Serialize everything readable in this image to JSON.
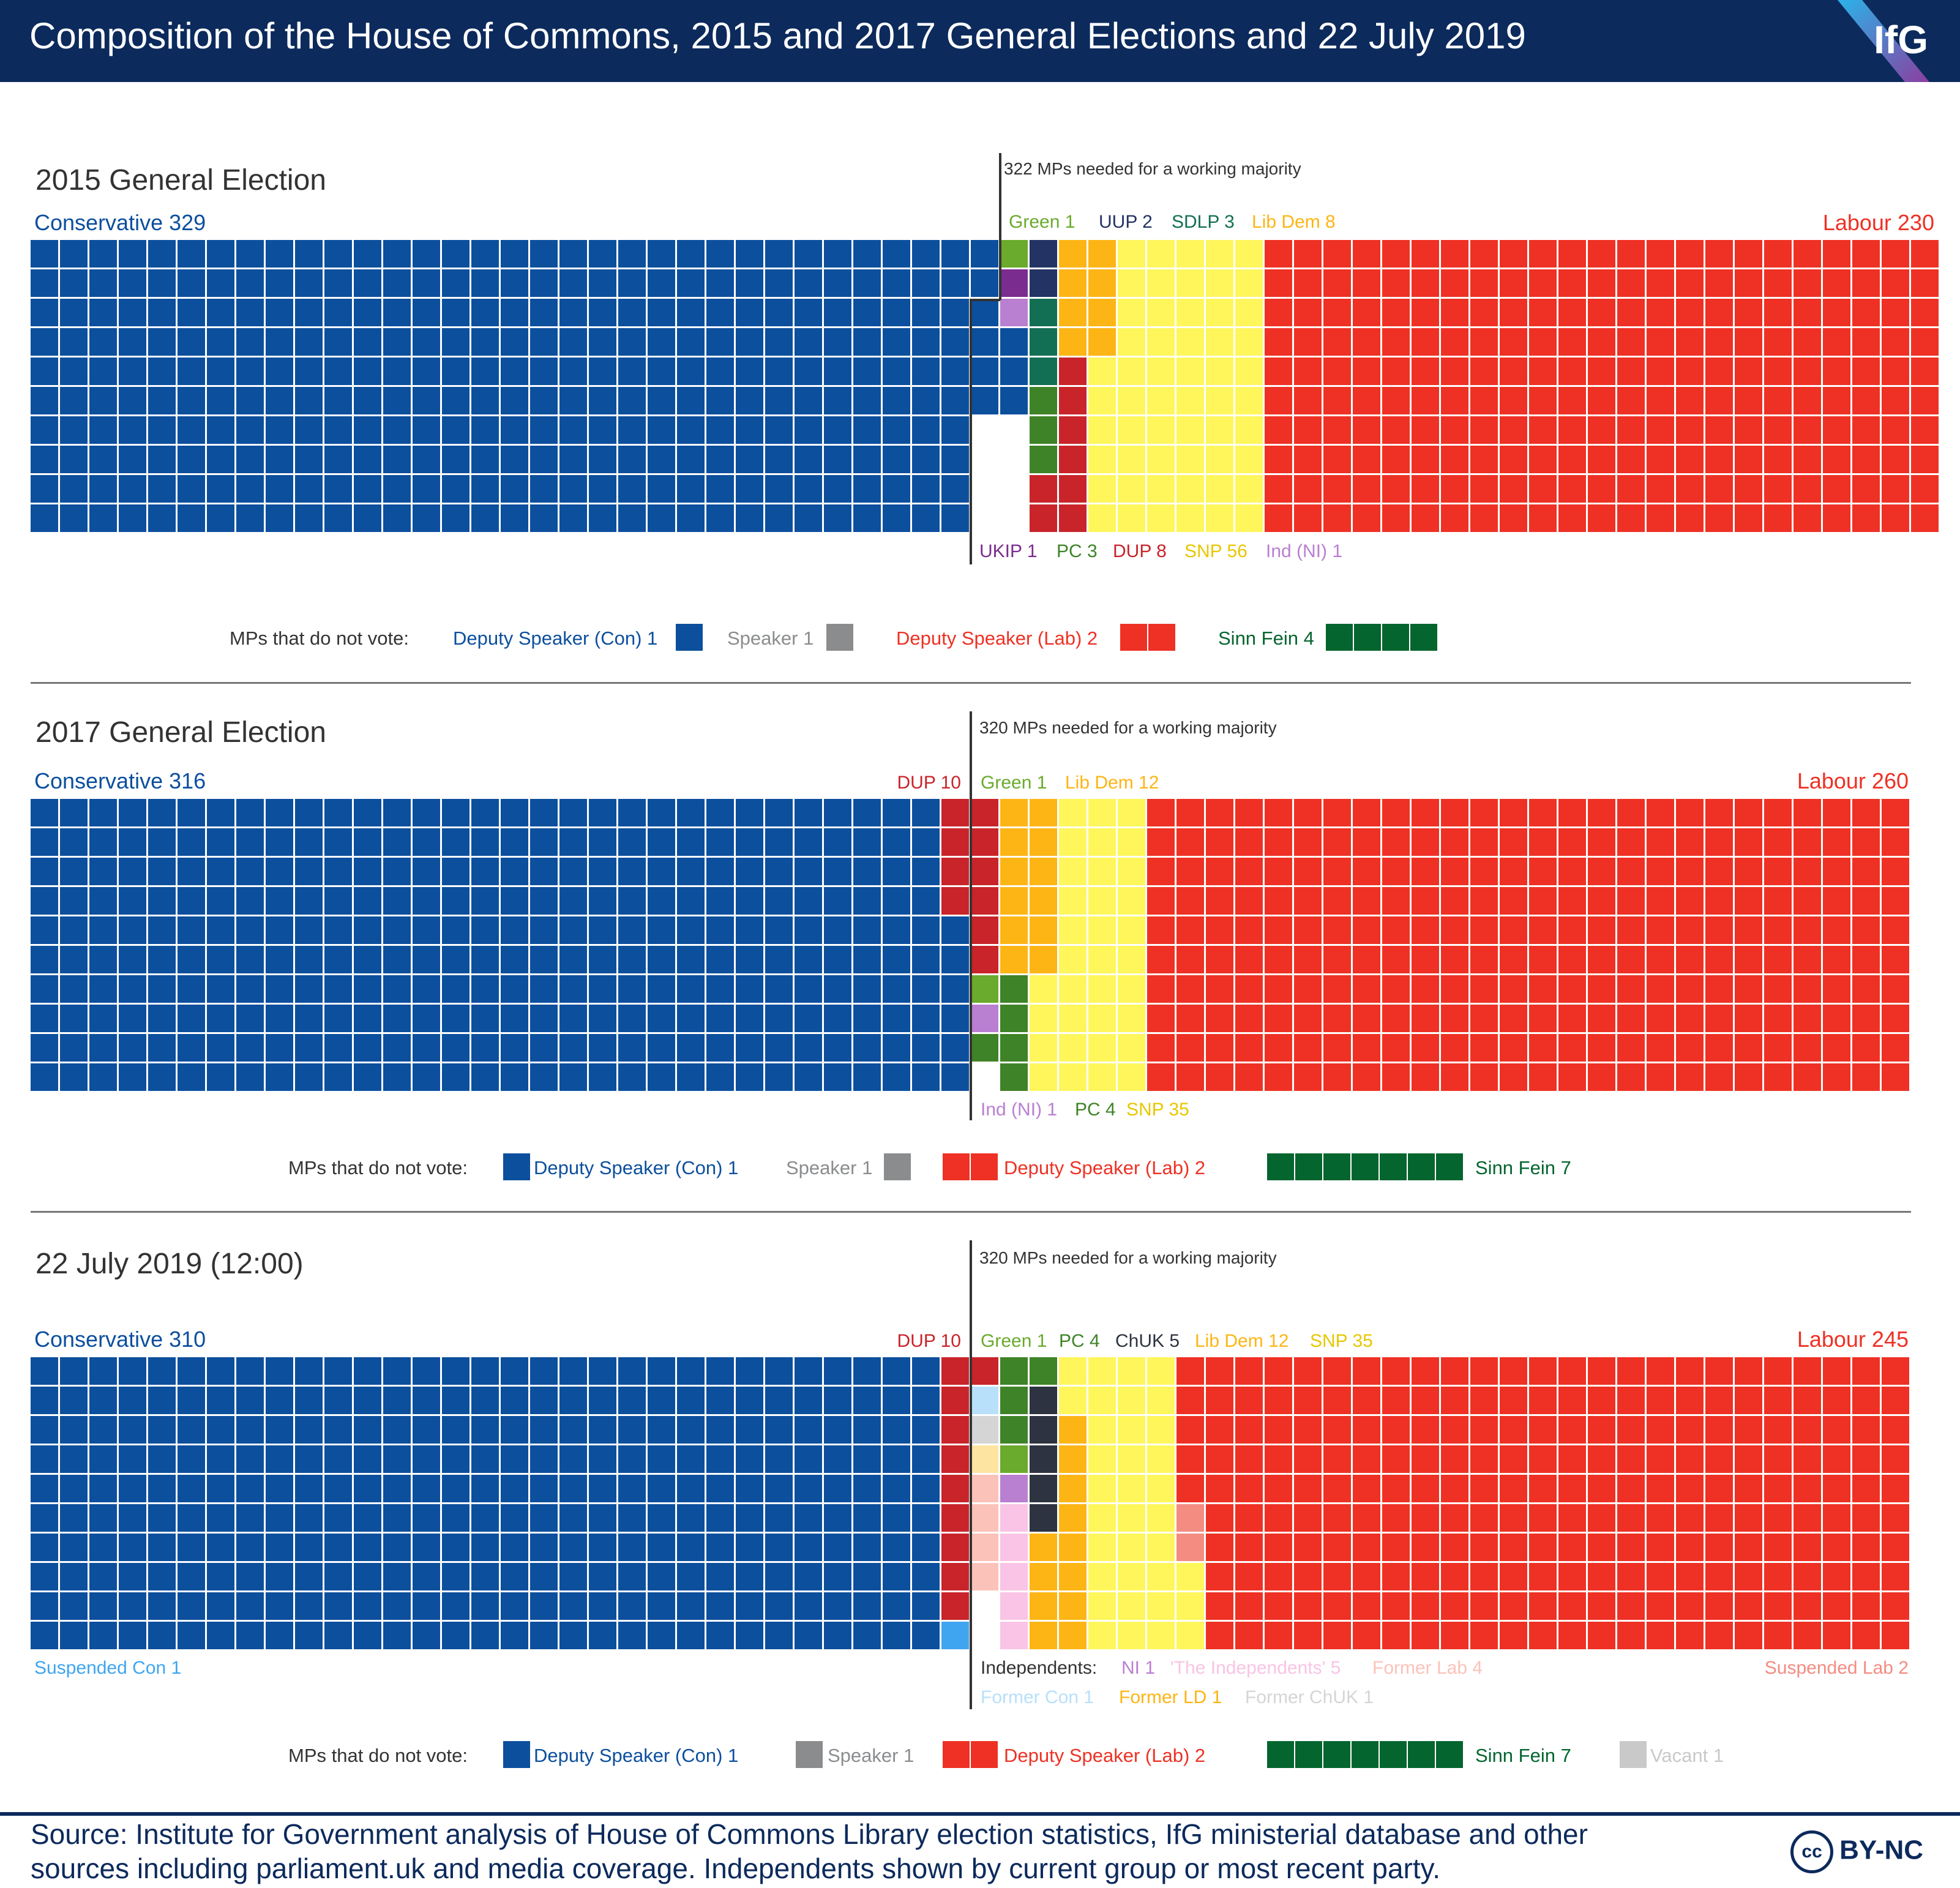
{
  "header": {
    "title": "Composition of the House of Commons, 2015 and 2017 General Elections and 22 July 2019",
    "logo": "IfG"
  },
  "footer": {
    "source_line1": "Source: Institute for Government analysis of House of Commons Library election statistics, IfG ministerial database and other",
    "source_line2": "sources including parliament.uk and media coverage. Independents shown by current group or most recent party.",
    "license": "BY-NC",
    "license_icon": "cc-icon"
  },
  "colors": {
    "con": "#0c4f9d",
    "lab": "#ee3124",
    "dup": "#c8242a",
    "lib": "#fdb515",
    "snp": "#fef65b",
    "green": "#6aaa2c",
    "pc": "#3e8327",
    "ukip": "#7b2c8f",
    "uup": "#233364",
    "sdlp": "#136f53",
    "indni": "#b97fd1",
    "chuk": "#2d3340",
    "indep": "#f9c4e5",
    "formerlab": "#fbc2b9",
    "suslab": "#f48c82",
    "suscon": "#3fa5f0",
    "formercon": "#b8e0fa",
    "formerld": "#fde4a0",
    "formerchuk": "#d5d5d5",
    "speaker": "#8a8c8e",
    "sf": "#04652f",
    "vacant": "#c9c9c9"
  },
  "chart_data": [
    {
      "type": "waffle",
      "title": "2015 General Election",
      "majority_label": "322 MPs needed for a working majority",
      "non_voting_label": "MPs that do not vote:",
      "seats": [
        {
          "party": "Conservative",
          "value": 329,
          "label": "Conservative 329"
        },
        {
          "party": "Green",
          "value": 1,
          "label": "Green 1"
        },
        {
          "party": "UUP",
          "value": 2,
          "label": "UUP 2"
        },
        {
          "party": "SDLP",
          "value": 3,
          "label": "SDLP 3"
        },
        {
          "party": "Lib Dem",
          "value": 8,
          "label": "Lib Dem 8"
        },
        {
          "party": "Labour",
          "value": 230,
          "label": "Labour 230"
        },
        {
          "party": "UKIP",
          "value": 1,
          "label": "UKIP 1"
        },
        {
          "party": "PC",
          "value": 3,
          "label": "PC 3"
        },
        {
          "party": "DUP",
          "value": 8,
          "label": "DUP 8"
        },
        {
          "party": "SNP",
          "value": 56,
          "label": "SNP 56"
        },
        {
          "party": "Ind (NI)",
          "value": 1,
          "label": "Ind (NI) 1"
        }
      ],
      "non_voting": [
        {
          "label": "Deputy Speaker (Con) 1",
          "value": 1
        },
        {
          "label": "Speaker 1",
          "value": 1
        },
        {
          "label": "Deputy Speaker (Lab) 2",
          "value": 2
        },
        {
          "label": "Sinn Fein 4",
          "value": 4
        }
      ]
    },
    {
      "type": "waffle",
      "title": "2017 General Election",
      "majority_label": "320 MPs needed for a working majority",
      "non_voting_label": "MPs that do not vote:",
      "seats": [
        {
          "party": "Conservative",
          "value": 316,
          "label": "Conservative 316"
        },
        {
          "party": "DUP",
          "value": 10,
          "label": "DUP 10"
        },
        {
          "party": "Green",
          "value": 1,
          "label": "Green 1"
        },
        {
          "party": "Lib Dem",
          "value": 12,
          "label": "Lib Dem 12"
        },
        {
          "party": "Labour",
          "value": 260,
          "label": "Labour 260"
        },
        {
          "party": "Ind (NI)",
          "value": 1,
          "label": "Ind (NI) 1"
        },
        {
          "party": "PC",
          "value": 4,
          "label": "PC 4"
        },
        {
          "party": "SNP",
          "value": 35,
          "label": "SNP 35"
        }
      ],
      "non_voting": [
        {
          "label": "Deputy Speaker (Con) 1",
          "value": 1
        },
        {
          "label": "Speaker 1",
          "value": 1
        },
        {
          "label": "Deputy Speaker (Lab) 2",
          "value": 2
        },
        {
          "label": "Sinn Fein 7",
          "value": 7
        }
      ]
    },
    {
      "type": "waffle",
      "title": "22 July 2019 (12:00)",
      "majority_label": "320 MPs needed for a working majority",
      "non_voting_label": "MPs that do not vote:",
      "independents_label": "Independents:",
      "seats": [
        {
          "party": "Conservative",
          "value": 310,
          "label": "Conservative 310"
        },
        {
          "party": "DUP",
          "value": 10,
          "label": "DUP 10"
        },
        {
          "party": "Green",
          "value": 1,
          "label": "Green 1"
        },
        {
          "party": "PC",
          "value": 4,
          "label": "PC 4"
        },
        {
          "party": "ChUK",
          "value": 5,
          "label": "ChUK 5"
        },
        {
          "party": "Lib Dem",
          "value": 12,
          "label": "Lib Dem 12"
        },
        {
          "party": "SNP",
          "value": 35,
          "label": "SNP 35"
        },
        {
          "party": "Labour",
          "value": 245,
          "label": "Labour 245"
        },
        {
          "party": "Suspended Con",
          "value": 1,
          "label": "Suspended Con 1"
        },
        {
          "party": "NI",
          "value": 1,
          "label": "NI 1"
        },
        {
          "party": "'The Independents'",
          "value": 5,
          "label": "'The Independents' 5"
        },
        {
          "party": "Former Lab",
          "value": 4,
          "label": "Former Lab 4"
        },
        {
          "party": "Suspended Lab",
          "value": 2,
          "label": "Suspended Lab   2"
        },
        {
          "party": "Former Con",
          "value": 1,
          "label": "Former Con 1"
        },
        {
          "party": "Former LD",
          "value": 1,
          "label": "Former LD 1"
        },
        {
          "party": "Former ChUK",
          "value": 1,
          "label": "Former ChUK 1"
        }
      ],
      "non_voting": [
        {
          "label": "Deputy Speaker (Con) 1",
          "value": 1
        },
        {
          "label": "Speaker 1",
          "value": 1
        },
        {
          "label": "Deputy Speaker (Lab) 2",
          "value": 2
        },
        {
          "label": "Sinn Fein 7",
          "value": 7
        },
        {
          "label": "Vacant 1",
          "value": 1
        }
      ]
    }
  ]
}
